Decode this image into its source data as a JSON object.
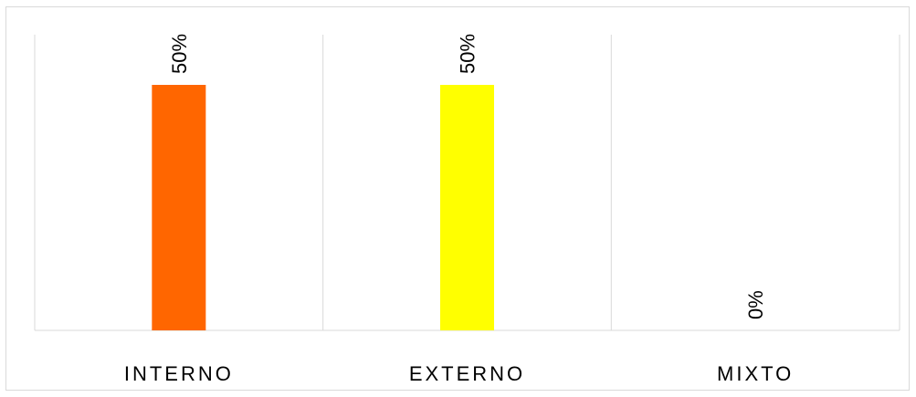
{
  "chart_data": {
    "type": "bar",
    "categories": [
      "INTERNO",
      "EXTERNO",
      "MIXTO"
    ],
    "values": [
      50,
      50,
      0
    ],
    "data_labels": [
      "50%",
      "50%",
      "0%"
    ],
    "colors": [
      "#FF6600",
      "#FFFF00",
      "#A5A5A5"
    ],
    "gridlines": "vertical category separators",
    "legend": "none"
  }
}
